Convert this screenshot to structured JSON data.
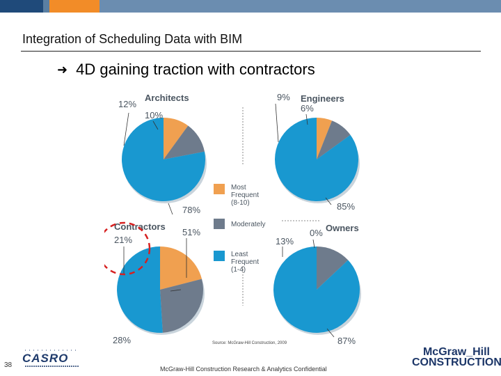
{
  "slide": {
    "title": "Integration of Scheduling Data with BIM",
    "bullet": "4D gaining traction with contractors",
    "page_number": "38",
    "footer": "McGraw-Hill Construction Research & Analytics Confidential",
    "logo_left": "CASRO",
    "logo_right_line1": "McGraw_Hill",
    "logo_right_line2": "CONSTRUCTION"
  },
  "colors": {
    "most_frequent": "#f0a050",
    "moderately": "#6e7b8c",
    "least_frequent": "#1998d0",
    "topbar": "#5a7fa3",
    "topbar_accent": "#f28c28",
    "highlight_circle": "#d62020"
  },
  "chart_data": {
    "type": "pie",
    "categories": [
      "Most Frequent (8-10)",
      "Moderately",
      "Least Frequent (1-4)"
    ],
    "legend": {
      "placement": "center",
      "entries": [
        {
          "label_line1": "Most",
          "label_line2": "Frequent",
          "label_line3": "(8-10)",
          "color_key": "most_frequent"
        },
        {
          "label_line1": "Moderately",
          "color_key": "moderately"
        },
        {
          "label_line1": "Least",
          "label_line2": "Frequent",
          "label_line3": "(1-4)",
          "color_key": "least_frequent"
        }
      ]
    },
    "charts": [
      {
        "title": "Architects",
        "values": [
          10,
          12,
          78
        ],
        "labels": [
          "10%",
          "12%",
          "78%"
        ]
      },
      {
        "title": "Engineers",
        "values": [
          6,
          9,
          85
        ],
        "labels": [
          "6%",
          "9%",
          "85%"
        ]
      },
      {
        "title": "Contractors",
        "values": [
          21,
          28,
          51
        ],
        "labels": [
          "21%",
          "28%",
          "51%"
        ]
      },
      {
        "title": "Owners",
        "values": [
          0,
          13,
          87
        ],
        "labels": [
          "0%",
          "13%",
          "87%"
        ]
      }
    ],
    "source": "Source: McGraw-Hill Construction, 2009"
  }
}
